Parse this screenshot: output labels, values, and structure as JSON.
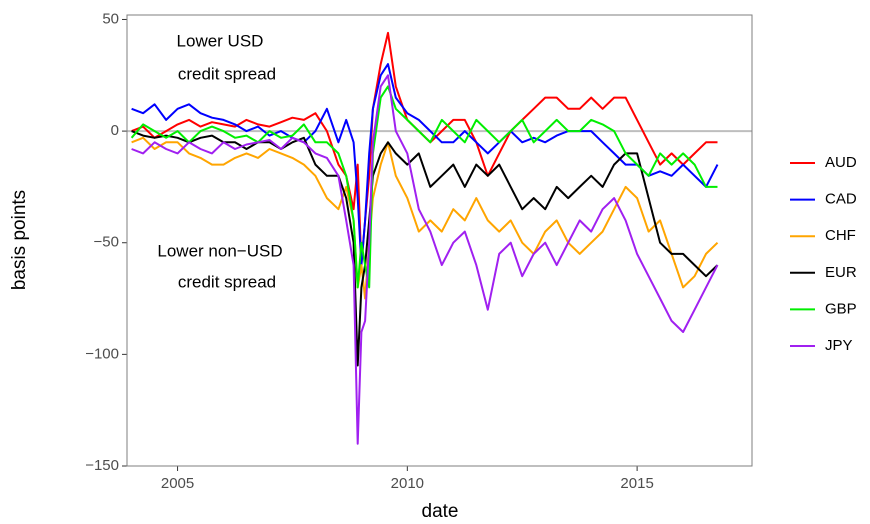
{
  "chart_data": {
    "type": "line",
    "xlabel": "date",
    "ylabel": "basis points",
    "annotations": [
      "Lower USD",
      "credit spread",
      "Lower non−USD",
      "credit spread"
    ],
    "x": [
      2004.0,
      2004.25,
      2004.5,
      2004.75,
      2005.0,
      2005.25,
      2005.5,
      2005.75,
      2006.0,
      2006.25,
      2006.5,
      2006.75,
      2007.0,
      2007.25,
      2007.5,
      2007.75,
      2008.0,
      2008.25,
      2008.5,
      2008.67,
      2008.83,
      2008.92,
      2009.0,
      2009.08,
      2009.17,
      2009.25,
      2009.42,
      2009.58,
      2009.75,
      2010.0,
      2010.25,
      2010.5,
      2010.75,
      2011.0,
      2011.25,
      2011.5,
      2011.75,
      2012.0,
      2012.25,
      2012.5,
      2012.75,
      2013.0,
      2013.25,
      2013.5,
      2013.75,
      2014.0,
      2014.25,
      2014.5,
      2014.75,
      2015.0,
      2015.25,
      2015.5,
      2015.75,
      2016.0,
      2016.25,
      2016.5,
      2016.75
    ],
    "series": [
      {
        "name": "AUD",
        "color": "#ff0000",
        "values": [
          0,
          2,
          -3,
          0,
          3,
          5,
          2,
          4,
          3,
          2,
          5,
          3,
          2,
          4,
          6,
          5,
          8,
          0,
          -15,
          -20,
          -35,
          -15,
          -60,
          -40,
          -20,
          10,
          30,
          44,
          20,
          5,
          0,
          -5,
          0,
          5,
          5,
          -5,
          -20,
          -10,
          0,
          5,
          10,
          15,
          15,
          10,
          10,
          15,
          10,
          15,
          15,
          5,
          -5,
          -15,
          -10,
          -15,
          -10,
          -5,
          -5
        ]
      },
      {
        "name": "CAD",
        "color": "#0000ff",
        "values": [
          10,
          8,
          12,
          5,
          10,
          12,
          8,
          6,
          5,
          3,
          0,
          2,
          -2,
          0,
          -3,
          -5,
          0,
          10,
          -5,
          5,
          -5,
          -30,
          -60,
          -40,
          -10,
          10,
          25,
          30,
          15,
          8,
          5,
          0,
          -5,
          -5,
          0,
          -5,
          -10,
          -5,
          0,
          -5,
          -3,
          -5,
          -2,
          0,
          0,
          0,
          -5,
          -10,
          -15,
          -15,
          -20,
          -18,
          -20,
          -15,
          -20,
          -25,
          -15
        ]
      },
      {
        "name": "CHF",
        "color": "#ffa500",
        "values": [
          -5,
          -3,
          -8,
          -5,
          -5,
          -10,
          -12,
          -15,
          -15,
          -12,
          -10,
          -12,
          -8,
          -10,
          -12,
          -15,
          -20,
          -30,
          -35,
          -25,
          -40,
          -70,
          -60,
          -75,
          -50,
          -30,
          -15,
          -5,
          -20,
          -30,
          -45,
          -40,
          -45,
          -35,
          -40,
          -30,
          -40,
          -45,
          -40,
          -50,
          -55,
          -45,
          -40,
          -50,
          -55,
          -50,
          -45,
          -35,
          -25,
          -30,
          -45,
          -40,
          -55,
          -70,
          -65,
          -55,
          -50
        ]
      },
      {
        "name": "EUR",
        "color": "#000000",
        "values": [
          0,
          -2,
          -3,
          -2,
          -3,
          -5,
          -3,
          -2,
          -5,
          -5,
          -8,
          -5,
          -5,
          -8,
          -5,
          -3,
          -15,
          -20,
          -20,
          -30,
          -50,
          -105,
          -70,
          -60,
          -40,
          -20,
          -10,
          -5,
          -10,
          -15,
          -10,
          -25,
          -20,
          -15,
          -25,
          -15,
          -20,
          -15,
          -25,
          -35,
          -30,
          -35,
          -25,
          -30,
          -25,
          -20,
          -25,
          -15,
          -10,
          -10,
          -30,
          -50,
          -55,
          -55,
          -60,
          -65,
          -60
        ]
      },
      {
        "name": "GBP",
        "color": "#00ee00",
        "values": [
          -3,
          3,
          0,
          -3,
          0,
          -5,
          0,
          2,
          0,
          -3,
          -2,
          -5,
          0,
          -3,
          -2,
          3,
          -5,
          -5,
          -10,
          -20,
          -40,
          -70,
          -50,
          -60,
          -70,
          -10,
          15,
          20,
          10,
          5,
          0,
          -5,
          5,
          0,
          -5,
          5,
          0,
          -5,
          0,
          5,
          -5,
          0,
          5,
          0,
          0,
          5,
          3,
          0,
          -10,
          -15,
          -20,
          -10,
          -15,
          -10,
          -15,
          -25,
          -25
        ]
      },
      {
        "name": "JPY",
        "color": "#a020f0",
        "values": [
          -8,
          -10,
          -5,
          -8,
          -10,
          -5,
          -8,
          -10,
          -5,
          -8,
          -6,
          -5,
          -4,
          -8,
          -3,
          -5,
          -10,
          -12,
          -20,
          -40,
          -60,
          -140,
          -90,
          -85,
          -50,
          -5,
          20,
          25,
          0,
          -10,
          -35,
          -45,
          -60,
          -50,
          -45,
          -60,
          -80,
          -55,
          -50,
          -65,
          -55,
          -50,
          -60,
          -50,
          -40,
          -45,
          -35,
          -30,
          -40,
          -55,
          -65,
          -75,
          -85,
          -90,
          -80,
          -70,
          -60
        ]
      }
    ],
    "reference_line": 0,
    "xlim": [
      2003.9,
      2017.5
    ],
    "xticks": [
      2005,
      2010,
      2015
    ],
    "ylim": [
      -150,
      52
    ],
    "yticks": [
      {
        "value": -150,
        "label": "−150"
      },
      {
        "value": -100,
        "label": "−100"
      },
      {
        "value": -50,
        "label": "−50"
      },
      0,
      50
    ],
    "legend": "right",
    "grid": false
  }
}
